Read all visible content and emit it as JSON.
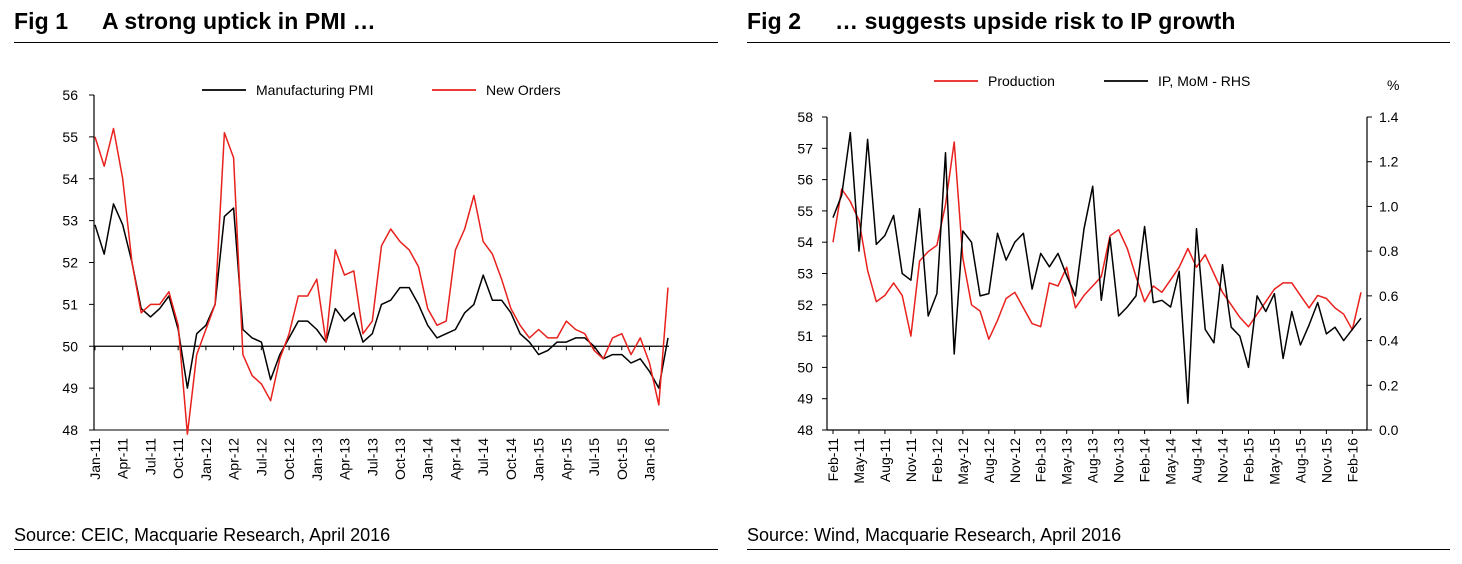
{
  "figures": [
    {
      "fig_number": "Fig 1",
      "title": "A strong uptick in PMI …",
      "source": "Source: CEIC, Macquarie Research, April 2016"
    },
    {
      "fig_number": "Fig 2",
      "title": "… suggests upside risk to IP growth",
      "source": "Source: Wind, Macquarie Research, April 2016"
    }
  ],
  "chart_data": [
    {
      "type": "line",
      "title": "A strong uptick in PMI …",
      "xlabel": "",
      "ylabel": "",
      "ylim": [
        48,
        56
      ],
      "yticks": [
        48,
        49,
        50,
        51,
        52,
        53,
        54,
        55,
        56
      ],
      "reference_line": 50,
      "grid": false,
      "legend": "top-center",
      "categories": [
        "Jan-11",
        "Feb-11",
        "Mar-11",
        "Apr-11",
        "May-11",
        "Jun-11",
        "Jul-11",
        "Aug-11",
        "Sep-11",
        "Oct-11",
        "Nov-11",
        "Dec-11",
        "Jan-12",
        "Feb-12",
        "Mar-12",
        "Apr-12",
        "May-12",
        "Jun-12",
        "Jul-12",
        "Aug-12",
        "Sep-12",
        "Oct-12",
        "Nov-12",
        "Dec-12",
        "Jan-13",
        "Feb-13",
        "Mar-13",
        "Apr-13",
        "May-13",
        "Jun-13",
        "Jul-13",
        "Aug-13",
        "Sep-13",
        "Oct-13",
        "Nov-13",
        "Dec-13",
        "Jan-14",
        "Feb-14",
        "Mar-14",
        "Apr-14",
        "May-14",
        "Jun-14",
        "Jul-14",
        "Aug-14",
        "Sep-14",
        "Oct-14",
        "Nov-14",
        "Dec-14",
        "Jan-15",
        "Feb-15",
        "Mar-15",
        "Apr-15",
        "May-15",
        "Jun-15",
        "Jul-15",
        "Aug-15",
        "Sep-15",
        "Oct-15",
        "Nov-15",
        "Dec-15",
        "Jan-16",
        "Feb-16",
        "Mar-16"
      ],
      "tick_labels": [
        "Jan-11",
        "Apr-11",
        "Jul-11",
        "Oct-11",
        "Jan-12",
        "Apr-12",
        "Jul-12",
        "Oct-12",
        "Jan-13",
        "Apr-13",
        "Jul-13",
        "Oct-13",
        "Jan-14",
        "Apr-14",
        "Jul-14",
        "Oct-14",
        "Jan-15",
        "Apr-15",
        "Jul-15",
        "Oct-15",
        "Jan-16"
      ],
      "series": [
        {
          "name": "Manufacturing PMI",
          "color": "#000000",
          "values": [
            52.9,
            52.2,
            53.4,
            52.9,
            52.0,
            50.9,
            50.7,
            50.9,
            51.2,
            50.4,
            49.0,
            50.3,
            50.5,
            51.0,
            53.1,
            53.3,
            50.4,
            50.2,
            50.1,
            49.2,
            49.8,
            50.2,
            50.6,
            50.6,
            50.4,
            50.1,
            50.9,
            50.6,
            50.8,
            50.1,
            50.3,
            51.0,
            51.1,
            51.4,
            51.4,
            51.0,
            50.5,
            50.2,
            50.3,
            50.4,
            50.8,
            51.0,
            51.7,
            51.1,
            51.1,
            50.8,
            50.3,
            50.1,
            49.8,
            49.9,
            50.1,
            50.1,
            50.2,
            50.2,
            50.0,
            49.7,
            49.8,
            49.8,
            49.6,
            49.7,
            49.4,
            49.0,
            50.2
          ]
        },
        {
          "name": "New Orders",
          "color": "#e8211d",
          "values": [
            55.0,
            54.3,
            55.2,
            54.0,
            52.0,
            50.8,
            51.0,
            51.0,
            51.3,
            50.5,
            47.9,
            49.8,
            50.4,
            51.0,
            55.1,
            54.5,
            49.8,
            49.3,
            49.1,
            48.7,
            49.7,
            50.3,
            51.2,
            51.2,
            51.6,
            50.1,
            52.3,
            51.7,
            51.8,
            50.3,
            50.6,
            52.4,
            52.8,
            52.5,
            52.3,
            51.9,
            50.9,
            50.5,
            50.6,
            52.3,
            52.8,
            53.6,
            52.5,
            52.2,
            51.6,
            50.9,
            50.5,
            50.2,
            50.4,
            50.2,
            50.2,
            50.6,
            50.4,
            50.3,
            49.9,
            49.7,
            50.2,
            50.3,
            49.8,
            50.2,
            49.6,
            48.6,
            51.4
          ]
        }
      ]
    },
    {
      "type": "line",
      "title": "… suggests upside risk to IP growth",
      "xlabel": "",
      "ylabel": "",
      "ylabel_right": "%",
      "ylim": [
        48,
        58
      ],
      "yticks": [
        48,
        49,
        50,
        51,
        52,
        53,
        54,
        55,
        56,
        57,
        58
      ],
      "ylim_right": [
        0.0,
        1.4
      ],
      "yticks_right": [
        "0.0",
        "0.2",
        "0.4",
        "0.6",
        "0.8",
        "1.0",
        "1.2",
        "1.4"
      ],
      "grid": false,
      "legend": "top-center",
      "categories": [
        "Feb-11",
        "Mar-11",
        "Apr-11",
        "May-11",
        "Jun-11",
        "Jul-11",
        "Aug-11",
        "Sep-11",
        "Oct-11",
        "Nov-11",
        "Dec-11",
        "Jan-12",
        "Feb-12",
        "Mar-12",
        "Apr-12",
        "May-12",
        "Jun-12",
        "Jul-12",
        "Aug-12",
        "Sep-12",
        "Oct-12",
        "Nov-12",
        "Dec-12",
        "Jan-13",
        "Feb-13",
        "Mar-13",
        "Apr-13",
        "May-13",
        "Jun-13",
        "Jul-13",
        "Aug-13",
        "Sep-13",
        "Oct-13",
        "Nov-13",
        "Dec-13",
        "Jan-14",
        "Feb-14",
        "Mar-14",
        "Apr-14",
        "May-14",
        "Jun-14",
        "Jul-14",
        "Aug-14",
        "Sep-14",
        "Oct-14",
        "Nov-14",
        "Dec-14",
        "Jan-15",
        "Feb-15",
        "Mar-15",
        "Apr-15",
        "May-15",
        "Jun-15",
        "Jul-15",
        "Aug-15",
        "Sep-15",
        "Oct-15",
        "Nov-15",
        "Dec-15",
        "Jan-16",
        "Feb-16",
        "Mar-16"
      ],
      "tick_labels": [
        "Feb-11",
        "May-11",
        "Aug-11",
        "Nov-11",
        "Feb-12",
        "May-12",
        "Aug-12",
        "Nov-12",
        "Feb-13",
        "May-13",
        "Aug-13",
        "Nov-13",
        "Feb-14",
        "May-14",
        "Aug-14",
        "Nov-14",
        "Feb-15",
        "May-15",
        "Aug-15",
        "Nov-15",
        "Feb-16"
      ],
      "series": [
        {
          "name": "Production",
          "axis": "left",
          "color": "#e8211d",
          "values": [
            54.0,
            55.7,
            55.3,
            54.7,
            53.1,
            52.1,
            52.3,
            52.7,
            52.3,
            51.0,
            53.4,
            53.7,
            53.9,
            55.2,
            57.2,
            53.5,
            52.0,
            51.8,
            50.9,
            51.5,
            52.2,
            52.4,
            51.9,
            51.4,
            51.3,
            52.7,
            52.6,
            53.2,
            51.9,
            52.3,
            52.6,
            52.9,
            54.2,
            54.4,
            53.8,
            52.9,
            52.1,
            52.6,
            52.4,
            52.8,
            53.2,
            53.8,
            53.2,
            53.6,
            53.0,
            52.4,
            52.0,
            51.6,
            51.3,
            51.7,
            52.1,
            52.5,
            52.7,
            52.7,
            52.3,
            51.9,
            52.3,
            52.2,
            51.9,
            51.7,
            51.2,
            52.4
          ]
        },
        {
          "name": "IP, MoM - RHS",
          "axis": "right",
          "color": "#000000",
          "values": [
            0.95,
            1.05,
            1.33,
            0.8,
            1.3,
            0.83,
            0.87,
            0.96,
            0.7,
            0.67,
            0.99,
            0.51,
            0.61,
            1.24,
            0.34,
            0.89,
            0.84,
            0.6,
            0.61,
            0.88,
            0.76,
            0.84,
            0.88,
            0.63,
            0.79,
            0.73,
            0.79,
            0.69,
            0.6,
            0.9,
            1.09,
            0.58,
            0.86,
            0.51,
            0.55,
            0.6,
            0.91,
            0.57,
            0.58,
            0.55,
            0.71,
            0.12,
            0.9,
            0.45,
            0.39,
            0.74,
            0.46,
            0.42,
            0.28,
            0.6,
            0.53,
            0.61,
            0.32,
            0.53,
            0.38,
            0.47,
            0.57,
            0.43,
            0.46,
            0.4,
            0.45,
            0.5
          ]
        }
      ]
    }
  ]
}
